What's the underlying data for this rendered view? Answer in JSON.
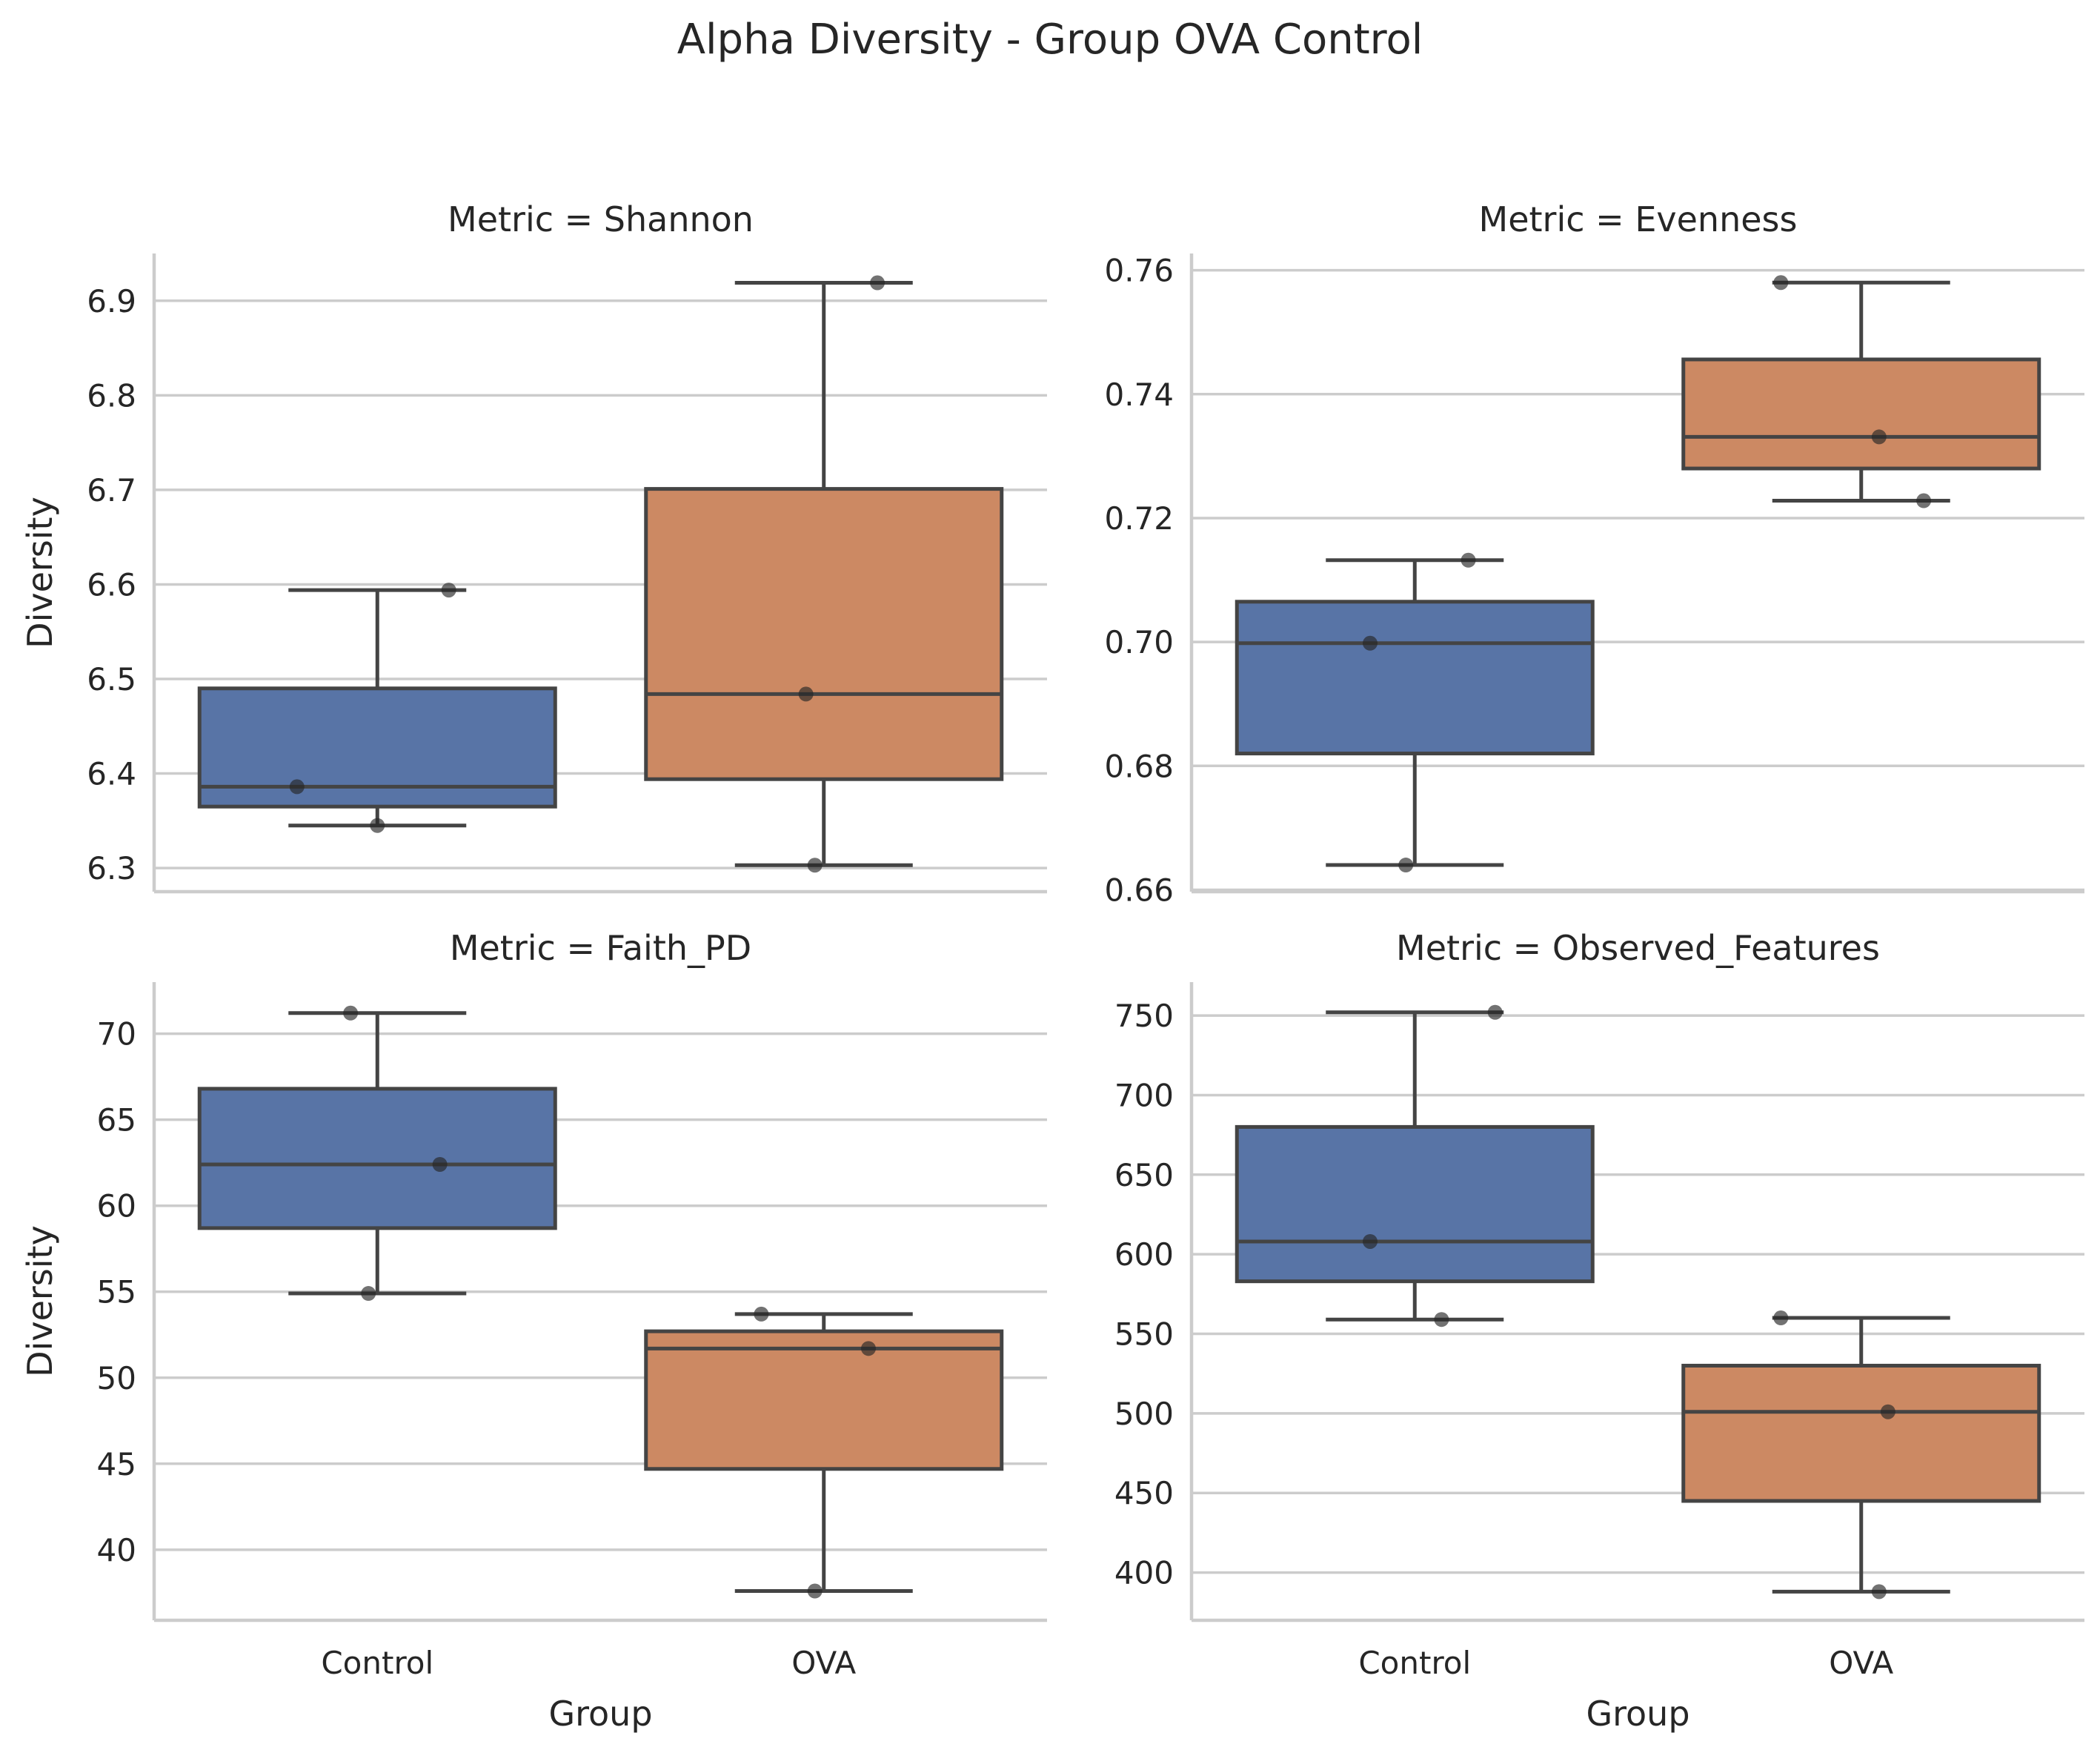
{
  "figure": {
    "title": "Alpha Diversity - Group OVA Control",
    "xlabel": "Group",
    "ylabel": "Diversity"
  },
  "style": {
    "control_color": "#5874a6",
    "ova_color": "#cc8963",
    "line_color": "#444444",
    "grid_color": "#cccccc",
    "point_color": "#262626"
  },
  "chart_data": [
    {
      "type": "box",
      "title": "Metric = Shannon",
      "xlabel": "",
      "ylabel": "Diversity",
      "categories": [
        "Control",
        "OVA"
      ],
      "ylim": [
        6.275,
        6.95
      ],
      "yticks": [
        6.3,
        6.4,
        6.5,
        6.6,
        6.7,
        6.8,
        6.9
      ],
      "ytick_labels": [
        "6.3",
        "6.4",
        "6.5",
        "6.6",
        "6.7",
        "6.8",
        "6.9"
      ],
      "boxes": [
        {
          "category": "Control",
          "whisker_low": 6.345,
          "q1": 6.365,
          "median": 6.386,
          "q3": 6.49,
          "whisker_high": 6.594
        },
        {
          "category": "OVA",
          "whisker_low": 6.303,
          "q1": 6.394,
          "median": 6.484,
          "q3": 6.701,
          "whisker_high": 6.919
        }
      ],
      "points": [
        {
          "category": "Control",
          "jitter": 0.08,
          "value": 6.594
        },
        {
          "category": "Control",
          "jitter": -0.09,
          "value": 6.386
        },
        {
          "category": "Control",
          "jitter": 0.0,
          "value": 6.345
        },
        {
          "category": "OVA",
          "jitter": 0.06,
          "value": 6.919
        },
        {
          "category": "OVA",
          "jitter": -0.02,
          "value": 6.484
        },
        {
          "category": "OVA",
          "jitter": -0.01,
          "value": 6.303
        }
      ]
    },
    {
      "type": "box",
      "title": "Metric = Evenness",
      "xlabel": "",
      "ylabel": "",
      "categories": [
        "Control",
        "OVA"
      ],
      "ylim": [
        0.6597,
        0.7627
      ],
      "yticks": [
        0.66,
        0.68,
        0.7,
        0.72,
        0.74,
        0.76
      ],
      "ytick_labels": [
        "0.66",
        "0.68",
        "0.70",
        "0.72",
        "0.74",
        "0.76"
      ],
      "boxes": [
        {
          "category": "Control",
          "whisker_low": 0.664,
          "q1": 0.682,
          "median": 0.6998,
          "q3": 0.7065,
          "whisker_high": 0.7132
        },
        {
          "category": "OVA",
          "whisker_low": 0.7228,
          "q1": 0.728,
          "median": 0.7331,
          "q3": 0.7456,
          "whisker_high": 0.758
        }
      ],
      "points": [
        {
          "category": "Control",
          "jitter": 0.06,
          "value": 0.7132
        },
        {
          "category": "Control",
          "jitter": -0.05,
          "value": 0.6998
        },
        {
          "category": "Control",
          "jitter": -0.01,
          "value": 0.664
        },
        {
          "category": "OVA",
          "jitter": -0.09,
          "value": 0.758
        },
        {
          "category": "OVA",
          "jitter": 0.02,
          "value": 0.7331
        },
        {
          "category": "OVA",
          "jitter": 0.07,
          "value": 0.7228
        }
      ]
    },
    {
      "type": "box",
      "title": "Metric = Faith_PD",
      "xlabel": "Group",
      "ylabel": "Diversity",
      "categories": [
        "Control",
        "OVA"
      ],
      "ylim": [
        35.9,
        73.0
      ],
      "yticks": [
        40,
        45,
        50,
        55,
        60,
        65,
        70
      ],
      "ytick_labels": [
        "40",
        "45",
        "50",
        "55",
        "60",
        "65",
        "70"
      ],
      "boxes": [
        {
          "category": "Control",
          "whisker_low": 54.9,
          "q1": 58.7,
          "median": 62.4,
          "q3": 66.8,
          "whisker_high": 71.2
        },
        {
          "category": "OVA",
          "whisker_low": 37.6,
          "q1": 44.7,
          "median": 51.7,
          "q3": 52.7,
          "whisker_high": 53.7
        }
      ],
      "points": [
        {
          "category": "Control",
          "jitter": -0.03,
          "value": 71.2
        },
        {
          "category": "Control",
          "jitter": 0.07,
          "value": 62.4
        },
        {
          "category": "Control",
          "jitter": -0.01,
          "value": 54.9
        },
        {
          "category": "OVA",
          "jitter": -0.07,
          "value": 53.7
        },
        {
          "category": "OVA",
          "jitter": 0.05,
          "value": 51.7
        },
        {
          "category": "OVA",
          "jitter": -0.01,
          "value": 37.6
        }
      ]
    },
    {
      "type": "box",
      "title": "Metric = Observed_Features",
      "xlabel": "Group",
      "ylabel": "",
      "categories": [
        "Control",
        "OVA"
      ],
      "ylim": [
        370.0,
        771.0
      ],
      "yticks": [
        400,
        450,
        500,
        550,
        600,
        650,
        700,
        750
      ],
      "ytick_labels": [
        "400",
        "450",
        "500",
        "550",
        "600",
        "650",
        "700",
        "750"
      ],
      "boxes": [
        {
          "category": "Control",
          "whisker_low": 559,
          "q1": 583,
          "median": 608,
          "q3": 680,
          "whisker_high": 752
        },
        {
          "category": "OVA",
          "whisker_low": 388,
          "q1": 445,
          "median": 501,
          "q3": 530,
          "whisker_high": 560
        }
      ],
      "points": [
        {
          "category": "Control",
          "jitter": 0.09,
          "value": 752
        },
        {
          "category": "Control",
          "jitter": -0.05,
          "value": 608
        },
        {
          "category": "Control",
          "jitter": 0.03,
          "value": 559
        },
        {
          "category": "OVA",
          "jitter": -0.09,
          "value": 560
        },
        {
          "category": "OVA",
          "jitter": 0.03,
          "value": 501
        },
        {
          "category": "OVA",
          "jitter": 0.02,
          "value": 388
        }
      ]
    }
  ]
}
